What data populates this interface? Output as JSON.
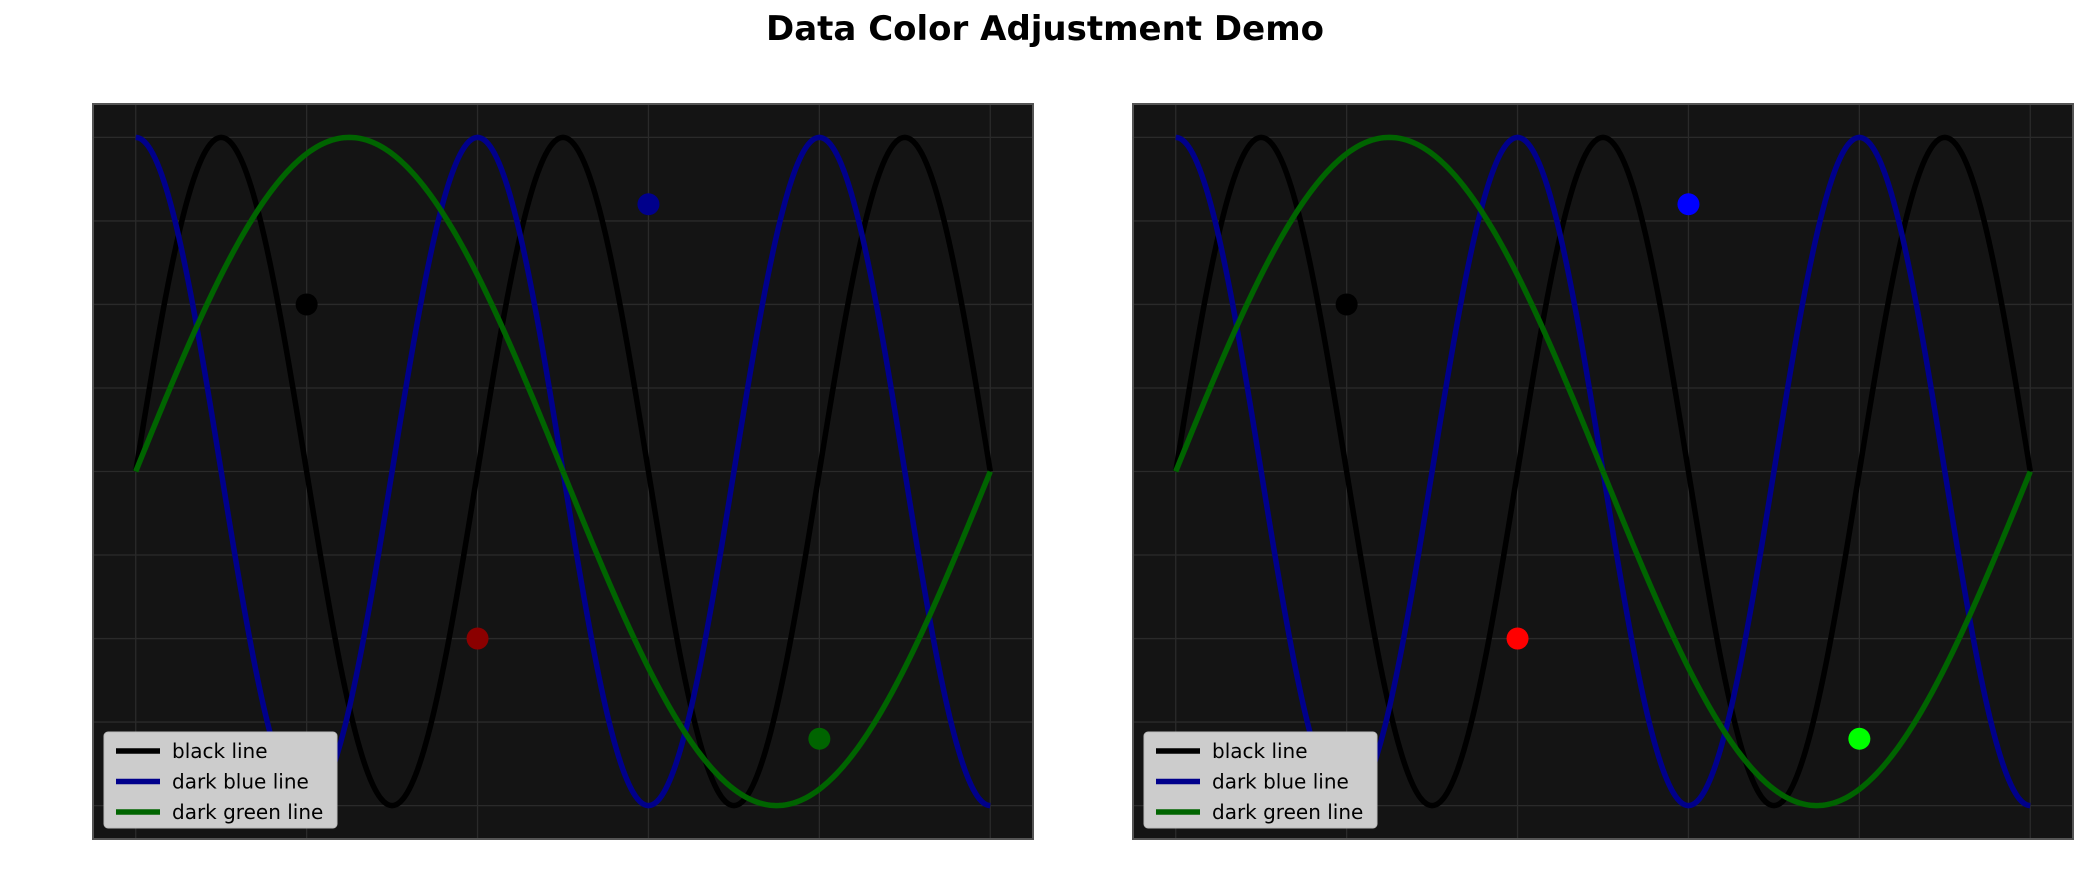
{
  "figure": {
    "title": "Data Color Adjustment Demo"
  },
  "chart_data": [
    {
      "type": "line",
      "panel": "left",
      "title": "",
      "xlabel": "",
      "ylabel": "",
      "xlim": [
        -0.25,
        5.25
      ],
      "ylim": [
        -1.1,
        1.1
      ],
      "grid": true,
      "axes_facecolor": "#141414",
      "legend_position": "lower-left",
      "series": [
        {
          "name": "black line",
          "color": "#000000",
          "function": "sin",
          "frequency": 1.25,
          "phase": 0
        },
        {
          "name": "dark blue line",
          "color": "#00008b",
          "function": "cos",
          "frequency": 1.25,
          "phase": 0
        },
        {
          "name": "dark green line",
          "color": "#006400",
          "function": "sin",
          "frequency": 0.5,
          "phase": 0
        }
      ],
      "points": [
        {
          "x": 1,
          "y": 0.5,
          "color": "#000000"
        },
        {
          "x": 2,
          "y": -0.5,
          "color": "#8b0000"
        },
        {
          "x": 3,
          "y": 0.8,
          "color": "#00008b"
        },
        {
          "x": 4,
          "y": -0.8,
          "color": "#006400"
        }
      ]
    },
    {
      "type": "line",
      "panel": "right",
      "title": "",
      "xlabel": "",
      "ylabel": "",
      "xlim": [
        -0.25,
        5.25
      ],
      "ylim": [
        -1.1,
        1.1
      ],
      "grid": true,
      "axes_facecolor": "#141414",
      "legend_position": "lower-left",
      "series": [
        {
          "name": "black line",
          "color": "#000000",
          "function": "sin",
          "frequency": 1.25,
          "phase": 0
        },
        {
          "name": "dark blue line",
          "color": "#00008b",
          "function": "cos",
          "frequency": 1.25,
          "phase": 0
        },
        {
          "name": "dark green line",
          "color": "#006400",
          "function": "sin",
          "frequency": 0.5,
          "phase": 0
        }
      ],
      "points": [
        {
          "x": 1,
          "y": 0.5,
          "color": "#000000"
        },
        {
          "x": 2,
          "y": -0.5,
          "color": "#ff0000"
        },
        {
          "x": 3,
          "y": 0.8,
          "color": "#0000ff"
        },
        {
          "x": 4,
          "y": -0.8,
          "color": "#00ff00"
        }
      ]
    }
  ]
}
